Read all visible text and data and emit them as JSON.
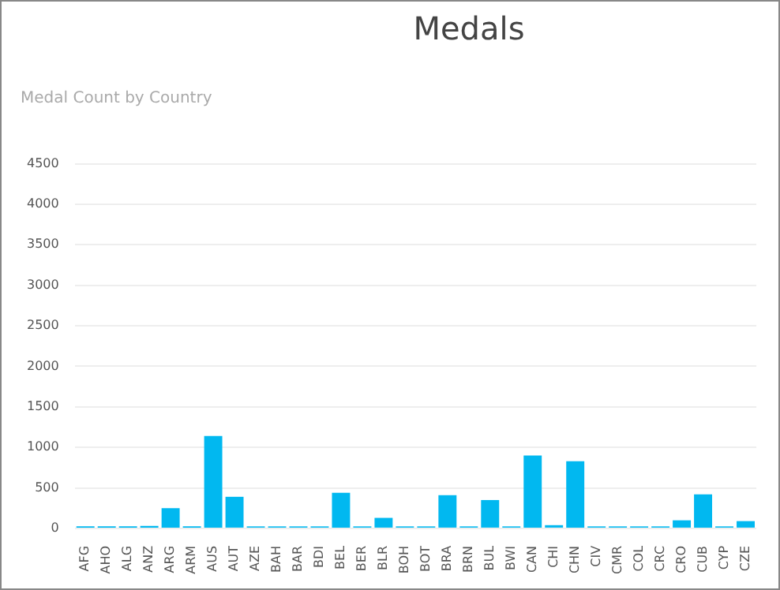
{
  "chart_data": {
    "type": "bar",
    "title": "Medals",
    "subtitle": "Medal Count by Country",
    "categories": [
      "AFG",
      "AHO",
      "ALG",
      "ANZ",
      "ARG",
      "ARM",
      "AUS",
      "AUT",
      "AZE",
      "BAH",
      "BAR",
      "BDI",
      "BEL",
      "BER",
      "BLR",
      "BOH",
      "BOT",
      "BRA",
      "BRN",
      "BUL",
      "BWI",
      "CAN",
      "CHI",
      "CHN",
      "CIV",
      "CMR",
      "COL",
      "CRC",
      "CRO",
      "CUB",
      "CYP",
      "CZE"
    ],
    "values": [
      25,
      25,
      25,
      30,
      250,
      25,
      1140,
      390,
      25,
      25,
      25,
      25,
      440,
      25,
      130,
      25,
      25,
      410,
      25,
      350,
      25,
      900,
      40,
      830,
      25,
      25,
      25,
      25,
      100,
      420,
      25,
      90
    ],
    "color": "#01b8f0",
    "ylim": [
      0,
      4500
    ],
    "yticks": [
      0,
      500,
      1000,
      1500,
      2000,
      2500,
      3000,
      3500,
      4000,
      4500
    ],
    "grid": "y"
  }
}
